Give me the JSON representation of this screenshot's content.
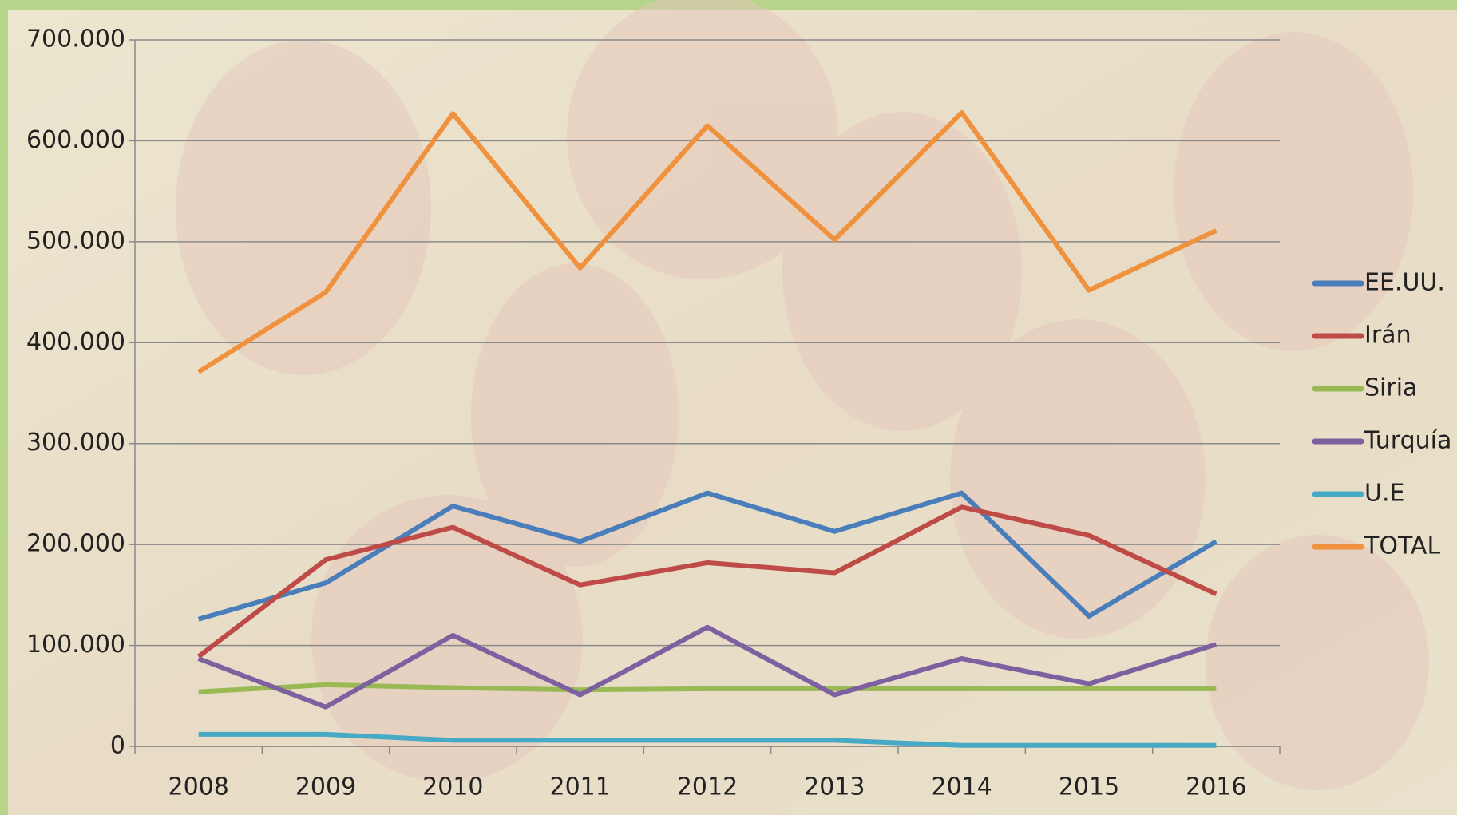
{
  "chart_data": {
    "type": "line",
    "categories": [
      "2008",
      "2009",
      "2010",
      "2011",
      "2012",
      "2013",
      "2014",
      "2015",
      "2016"
    ],
    "series": [
      {
        "name": "EE.UU.",
        "color": "#4a7ebb",
        "values": [
          126000,
          162000,
          238000,
          203000,
          251000,
          213000,
          251000,
          129000,
          203000
        ]
      },
      {
        "name": "Irán",
        "color": "#be4b48",
        "values": [
          89000,
          185000,
          217000,
          160000,
          182000,
          172000,
          237000,
          209000,
          151000
        ]
      },
      {
        "name": "Siria",
        "color": "#98b954",
        "values": [
          54000,
          61000,
          58000,
          56000,
          57000,
          57000,
          57000,
          57000,
          57000
        ]
      },
      {
        "name": "Turquía",
        "color": "#7d60a0",
        "values": [
          87000,
          39000,
          110000,
          51000,
          118000,
          51000,
          87000,
          62000,
          101000
        ]
      },
      {
        "name": "U.E",
        "color": "#46aac5",
        "values": [
          12000,
          12000,
          6000,
          6000,
          6000,
          6000,
          1000,
          1000,
          1000
        ]
      },
      {
        "name": "TOTAL",
        "color": "#f0913d",
        "values": [
          371000,
          450000,
          627000,
          474000,
          615000,
          502000,
          628000,
          452000,
          511000
        ]
      }
    ],
    "ylim": [
      0,
      700000
    ],
    "yticks": [
      0,
      {
        "value": 100000,
        "label": "100.000"
      },
      {
        "value": 200000,
        "label": "200.000"
      },
      {
        "value": 300000,
        "label": "300.000"
      },
      {
        "value": 400000,
        "label": "400.000"
      },
      {
        "value": 500000,
        "label": "500.000"
      },
      {
        "value": 600000,
        "label": "600.000"
      },
      {
        "value": 700000,
        "label": "700.000"
      }
    ],
    "grid": true,
    "legend": "right"
  }
}
